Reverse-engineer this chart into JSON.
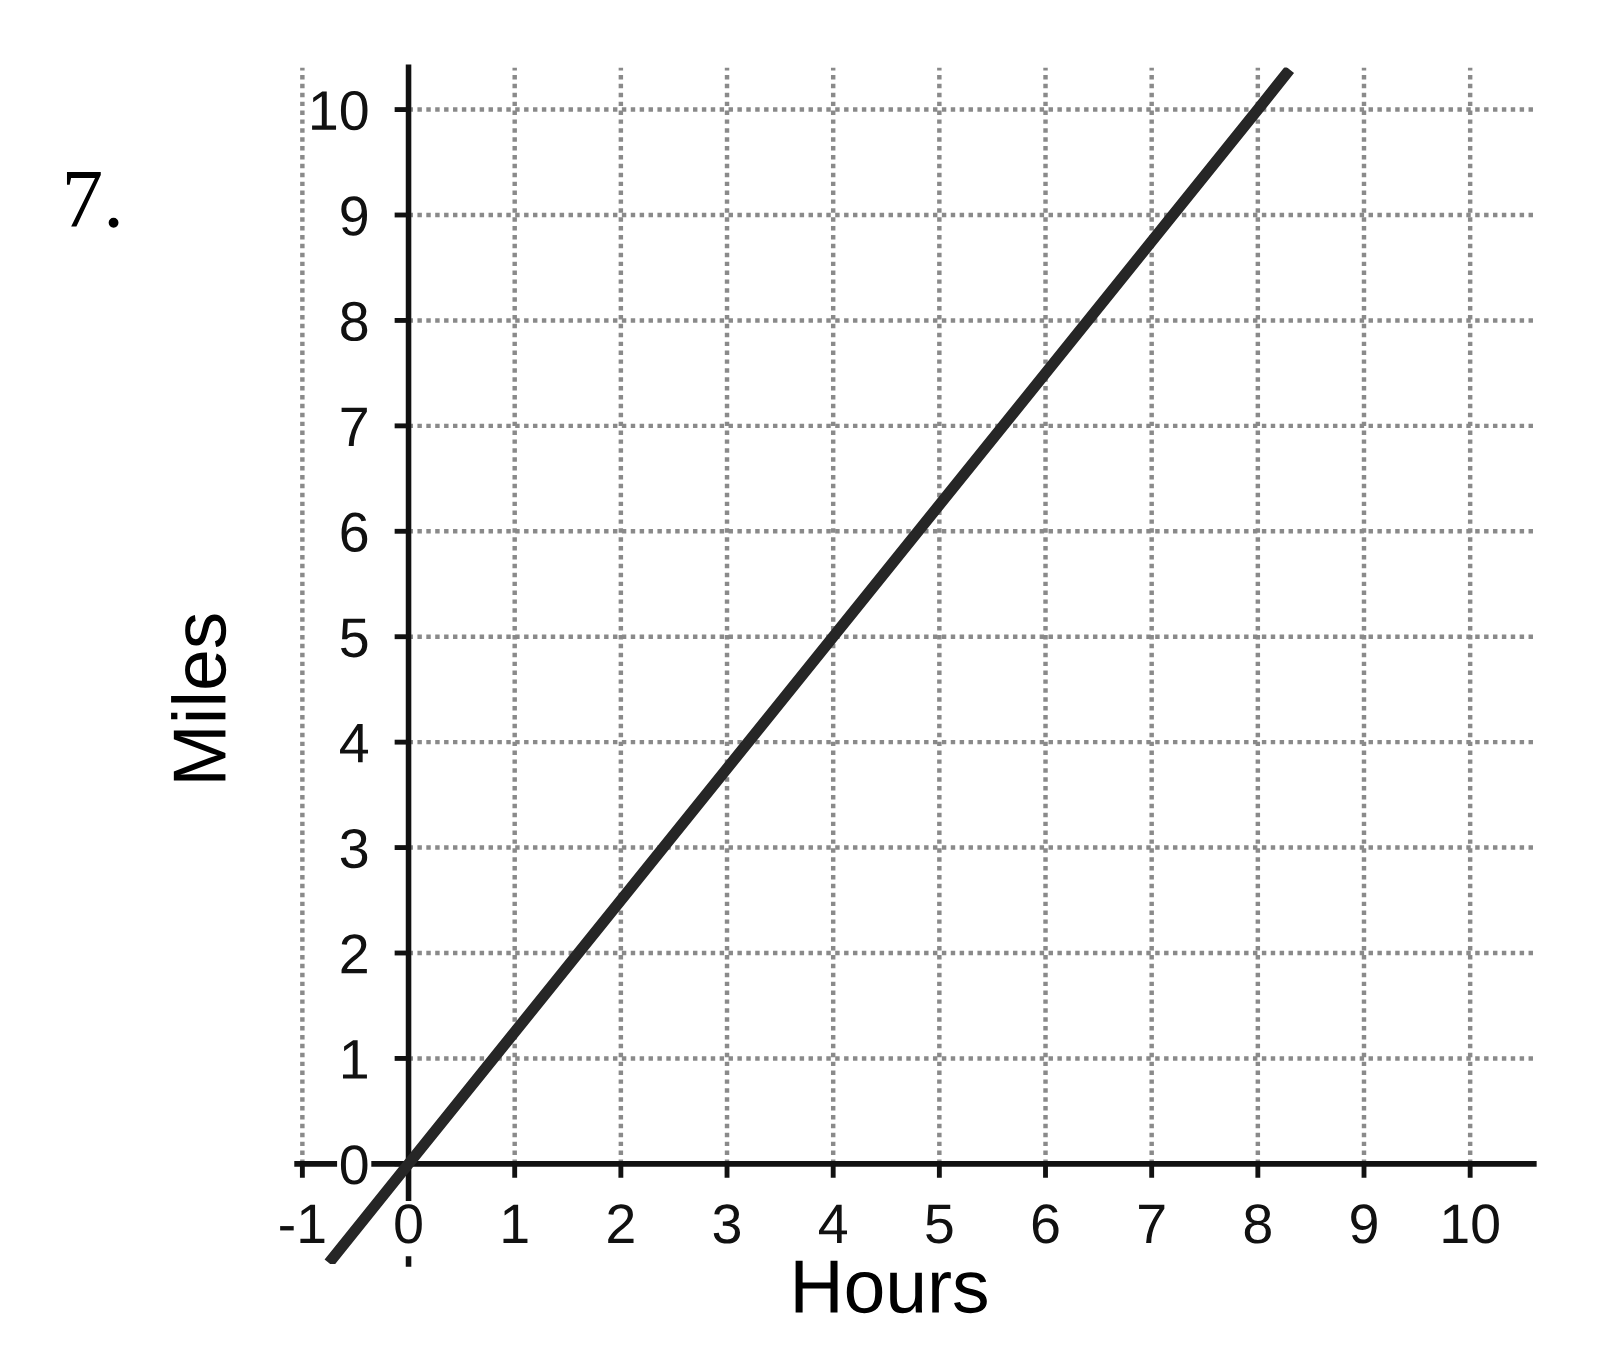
{
  "chart_data": {
    "type": "line",
    "xlabel": "Hours",
    "ylabel": "Miles",
    "annotations": [
      "7."
    ],
    "x": [
      -0.75,
      0,
      4,
      8,
      8.3
    ],
    "series": [
      {
        "color": "#262626",
        "values": [
          -0.94,
          0,
          5,
          10,
          10.38
        ]
      }
    ],
    "xlim": [
      -1.05,
      10.6
    ],
    "ylim": [
      -0.95,
      10.4
    ],
    "xticks": [
      -1,
      0,
      1,
      2,
      3,
      4,
      5,
      6,
      7,
      8,
      9,
      10
    ],
    "yticks": [
      0,
      1,
      2,
      3,
      4,
      5,
      6,
      7,
      8,
      9,
      10
    ],
    "grid": true,
    "marker": "none",
    "line_style": "solid"
  }
}
